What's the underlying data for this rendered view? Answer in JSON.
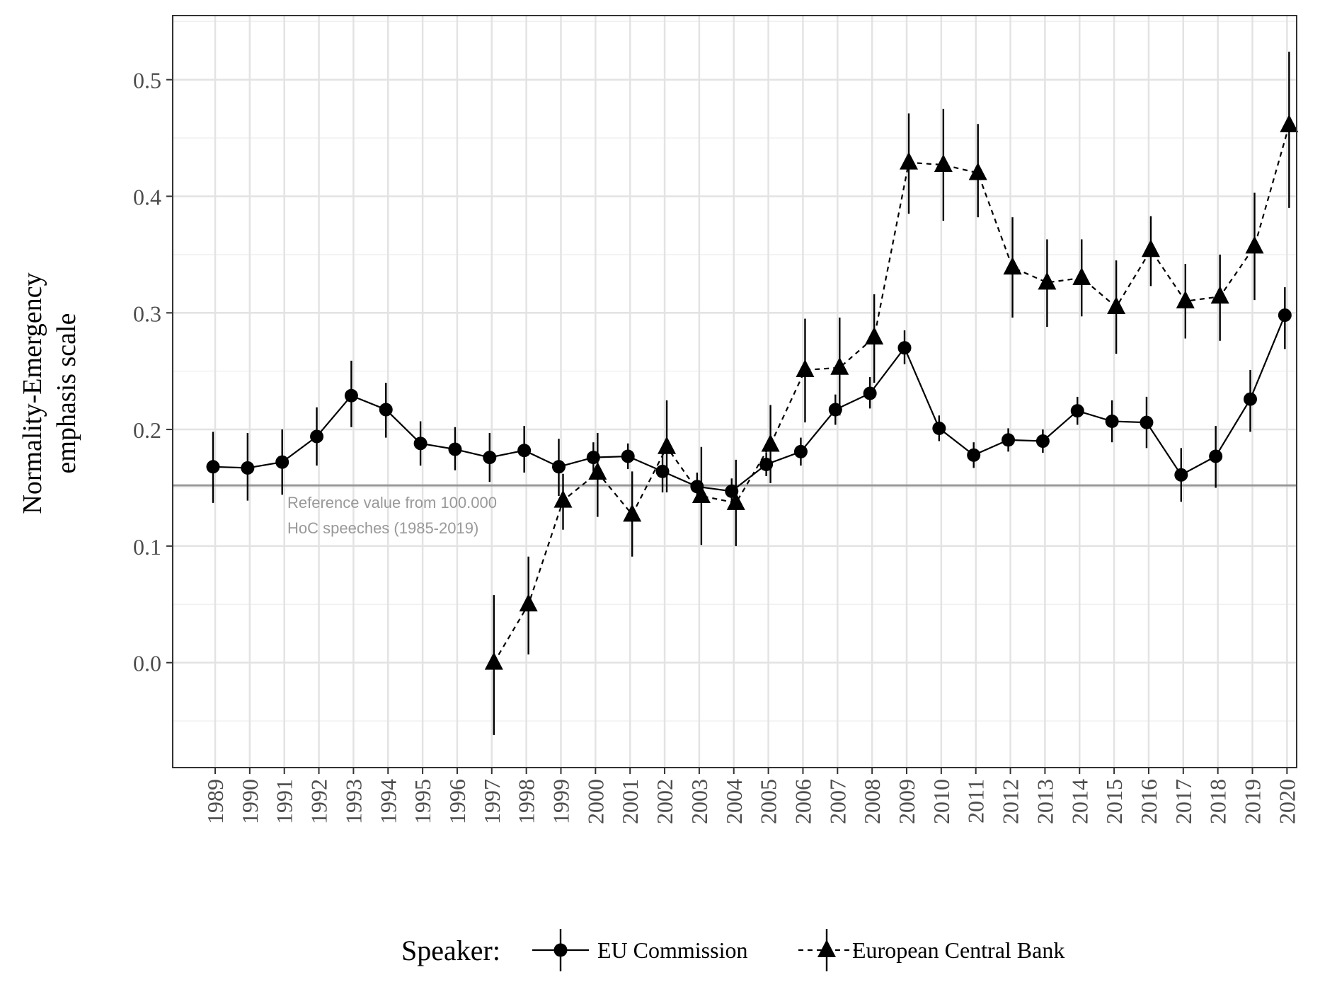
{
  "chart_data": {
    "type": "line",
    "title": "",
    "xlabel": "",
    "ylabel_lines": [
      "Normality-Emergency",
      "emphasis scale"
    ],
    "categories": [
      "1989",
      "1990",
      "1991",
      "1992",
      "1993",
      "1994",
      "1995",
      "1996",
      "1997",
      "1998",
      "1999",
      "2000",
      "2001",
      "2002",
      "2003",
      "2004",
      "2005",
      "2006",
      "2007",
      "2008",
      "2009",
      "2010",
      "2011",
      "2012",
      "2013",
      "2014",
      "2015",
      "2016",
      "2017",
      "2018",
      "2019",
      "2020"
    ],
    "ylim": [
      -0.09,
      0.555
    ],
    "yticks": [
      "0.0",
      "0.1",
      "0.2",
      "0.3",
      "0.4",
      "0.5"
    ],
    "ytick_values": [
      0.0,
      0.1,
      0.2,
      0.3,
      0.4,
      0.5
    ],
    "grid": true,
    "legend": {
      "title": "Speaker:",
      "position": "bottom"
    },
    "reference_line": {
      "value": 0.152,
      "color": "#999999",
      "label_lines": [
        "Reference value from 100.000",
        "HoC speeches (1985-2019)"
      ]
    },
    "series": [
      {
        "name": "EU Commission",
        "marker": "circle",
        "linestyle": "solid",
        "color": "#000000",
        "points": [
          {
            "x": "1989",
            "y": 0.168,
            "lo": 0.137,
            "hi": 0.198
          },
          {
            "x": "1990",
            "y": 0.167,
            "lo": 0.139,
            "hi": 0.197
          },
          {
            "x": "1991",
            "y": 0.172,
            "lo": 0.144,
            "hi": 0.2
          },
          {
            "x": "1992",
            "y": 0.194,
            "lo": 0.169,
            "hi": 0.219
          },
          {
            "x": "1993",
            "y": 0.229,
            "lo": 0.202,
            "hi": 0.259
          },
          {
            "x": "1994",
            "y": 0.217,
            "lo": 0.193,
            "hi": 0.24
          },
          {
            "x": "1995",
            "y": 0.188,
            "lo": 0.169,
            "hi": 0.207
          },
          {
            "x": "1996",
            "y": 0.183,
            "lo": 0.165,
            "hi": 0.202
          },
          {
            "x": "1997",
            "y": 0.176,
            "lo": 0.155,
            "hi": 0.197
          },
          {
            "x": "1998",
            "y": 0.182,
            "lo": 0.163,
            "hi": 0.203
          },
          {
            "x": "1999",
            "y": 0.168,
            "lo": 0.143,
            "hi": 0.192
          },
          {
            "x": "2000",
            "y": 0.176,
            "lo": 0.164,
            "hi": 0.189
          },
          {
            "x": "2001",
            "y": 0.177,
            "lo": 0.166,
            "hi": 0.188
          },
          {
            "x": "2002",
            "y": 0.164,
            "lo": 0.146,
            "hi": 0.183
          },
          {
            "x": "2003",
            "y": 0.151,
            "lo": 0.14,
            "hi": 0.163
          },
          {
            "x": "2004",
            "y": 0.147,
            "lo": 0.137,
            "hi": 0.158
          },
          {
            "x": "2005",
            "y": 0.17,
            "lo": 0.16,
            "hi": 0.18
          },
          {
            "x": "2006",
            "y": 0.181,
            "lo": 0.169,
            "hi": 0.193
          },
          {
            "x": "2007",
            "y": 0.217,
            "lo": 0.204,
            "hi": 0.23
          },
          {
            "x": "2008",
            "y": 0.231,
            "lo": 0.218,
            "hi": 0.245
          },
          {
            "x": "2009",
            "y": 0.27,
            "lo": 0.256,
            "hi": 0.285
          },
          {
            "x": "2010",
            "y": 0.201,
            "lo": 0.19,
            "hi": 0.212
          },
          {
            "x": "2011",
            "y": 0.178,
            "lo": 0.167,
            "hi": 0.189
          },
          {
            "x": "2012",
            "y": 0.191,
            "lo": 0.181,
            "hi": 0.201
          },
          {
            "x": "2013",
            "y": 0.19,
            "lo": 0.18,
            "hi": 0.2
          },
          {
            "x": "2014",
            "y": 0.216,
            "lo": 0.204,
            "hi": 0.228
          },
          {
            "x": "2015",
            "y": 0.207,
            "lo": 0.189,
            "hi": 0.225
          },
          {
            "x": "2016",
            "y": 0.206,
            "lo": 0.184,
            "hi": 0.228
          },
          {
            "x": "2017",
            "y": 0.161,
            "lo": 0.138,
            "hi": 0.184
          },
          {
            "x": "2018",
            "y": 0.177,
            "lo": 0.15,
            "hi": 0.203
          },
          {
            "x": "2019",
            "y": 0.226,
            "lo": 0.198,
            "hi": 0.251
          },
          {
            "x": "2020",
            "y": 0.298,
            "lo": 0.269,
            "hi": 0.322
          }
        ]
      },
      {
        "name": "European Central Bank",
        "marker": "triangle",
        "linestyle": "dashed",
        "color": "#000000",
        "points": [
          {
            "x": "1997",
            "y": 0.0,
            "lo": -0.062,
            "hi": 0.058
          },
          {
            "x": "1998",
            "y": 0.05,
            "lo": 0.007,
            "hi": 0.091
          },
          {
            "x": "1999",
            "y": 0.139,
            "lo": 0.114,
            "hi": 0.162
          },
          {
            "x": "2000",
            "y": 0.163,
            "lo": 0.125,
            "hi": 0.197
          },
          {
            "x": "2001",
            "y": 0.127,
            "lo": 0.091,
            "hi": 0.164
          },
          {
            "x": "2002",
            "y": 0.185,
            "lo": 0.146,
            "hi": 0.225
          },
          {
            "x": "2003",
            "y": 0.143,
            "lo": 0.101,
            "hi": 0.185
          },
          {
            "x": "2004",
            "y": 0.137,
            "lo": 0.1,
            "hi": 0.174
          },
          {
            "x": "2005",
            "y": 0.187,
            "lo": 0.154,
            "hi": 0.221
          },
          {
            "x": "2006",
            "y": 0.251,
            "lo": 0.206,
            "hi": 0.295
          },
          {
            "x": "2007",
            "y": 0.253,
            "lo": 0.212,
            "hi": 0.296
          },
          {
            "x": "2008",
            "y": 0.279,
            "lo": 0.24,
            "hi": 0.316
          },
          {
            "x": "2009",
            "y": 0.429,
            "lo": 0.385,
            "hi": 0.471
          },
          {
            "x": "2010",
            "y": 0.427,
            "lo": 0.379,
            "hi": 0.475
          },
          {
            "x": "2011",
            "y": 0.42,
            "lo": 0.382,
            "hi": 0.462
          },
          {
            "x": "2012",
            "y": 0.339,
            "lo": 0.296,
            "hi": 0.382
          },
          {
            "x": "2013",
            "y": 0.326,
            "lo": 0.288,
            "hi": 0.363
          },
          {
            "x": "2014",
            "y": 0.33,
            "lo": 0.297,
            "hi": 0.363
          },
          {
            "x": "2015",
            "y": 0.305,
            "lo": 0.265,
            "hi": 0.345
          },
          {
            "x": "2016",
            "y": 0.354,
            "lo": 0.323,
            "hi": 0.383
          },
          {
            "x": "2017",
            "y": 0.31,
            "lo": 0.278,
            "hi": 0.342
          },
          {
            "x": "2018",
            "y": 0.314,
            "lo": 0.276,
            "hi": 0.35
          },
          {
            "x": "2019",
            "y": 0.357,
            "lo": 0.311,
            "hi": 0.403
          },
          {
            "x": "2020",
            "y": 0.461,
            "lo": 0.39,
            "hi": 0.524
          }
        ]
      }
    ]
  }
}
